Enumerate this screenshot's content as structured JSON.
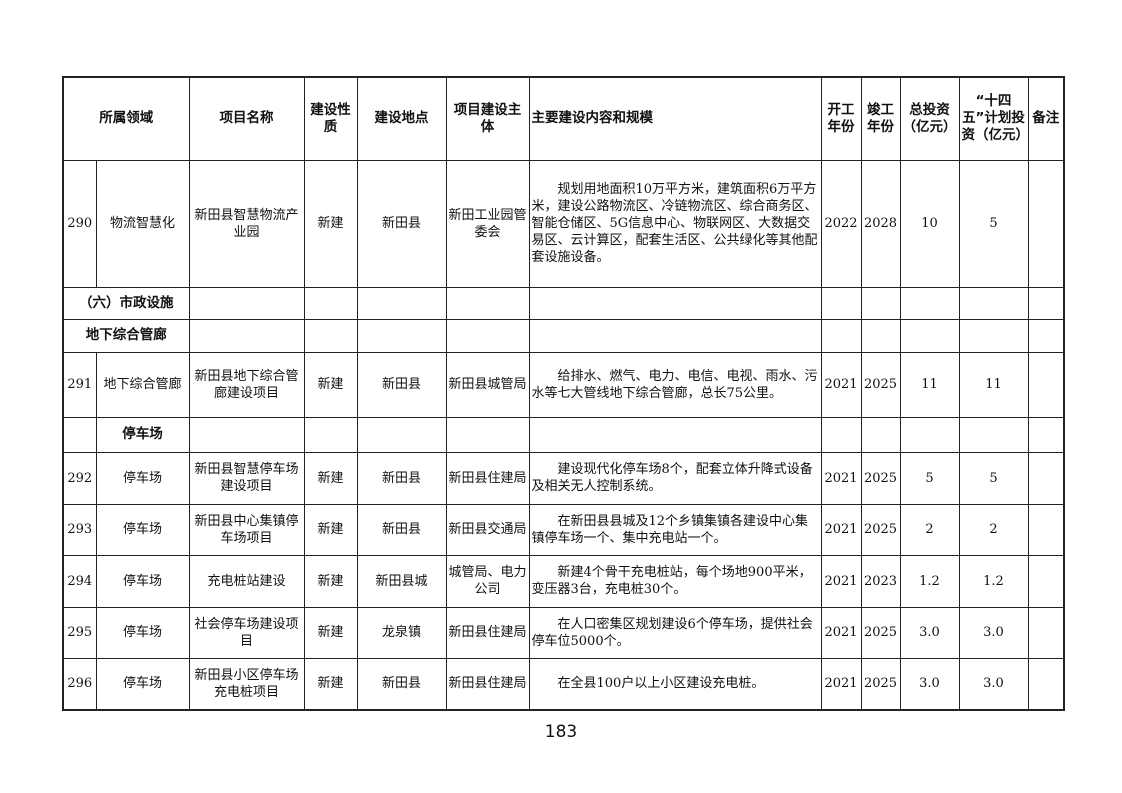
{
  "headers": {
    "domain": "所属领域",
    "name": "项目名称",
    "nature": "建设性质",
    "location": "建设地点",
    "owner": "项目建设主体",
    "content": "主要建设内容和规模",
    "start": "开工年份",
    "end": "竣工年份",
    "total": "总投资（亿元）",
    "plan": "“十四五”计划投资（亿元）",
    "note": "备注"
  },
  "sections": {
    "municipal": "（六）市政设施",
    "pipe": "地下综合管廊",
    "parking": "停车场"
  },
  "rows": [
    {
      "no": "290",
      "domain": "物流智慧化",
      "name": "新田县智慧物流产业园",
      "nature": "新建",
      "location": "新田县",
      "owner": "新田工业园管委会",
      "content": "规划用地面积10万平方米，建筑面积6万平方米，建设公路物流区、冷链物流区、综合商务区、智能仓储区、5G信息中心、物联网区、大数据交易区、云计算区，配套生活区、公共绿化等其他配套设施设备。",
      "start": "2022",
      "end": "2028",
      "total": "10",
      "plan": "5",
      "note": ""
    },
    {
      "no": "291",
      "domain": "地下综合管廊",
      "name": "新田县地下综合管廊建设项目",
      "nature": "新建",
      "location": "新田县",
      "owner": "新田县城管局",
      "content": "给排水、燃气、电力、电信、电视、雨水、污水等七大管线地下综合管廊，总长75公里。",
      "start": "2021",
      "end": "2025",
      "total": "11",
      "plan": "11",
      "note": ""
    },
    {
      "no": "292",
      "domain": "停车场",
      "name": "新田县智慧停车场建设项目",
      "nature": "新建",
      "location": "新田县",
      "owner": "新田县住建局",
      "content": "建设现代化停车场8个，配套立体升降式设备及相关无人控制系统。",
      "start": "2021",
      "end": "2025",
      "total": "5",
      "plan": "5",
      "note": ""
    },
    {
      "no": "293",
      "domain": "停车场",
      "name": "新田县中心集镇停车场项目",
      "nature": "新建",
      "location": "新田县",
      "owner": "新田县交通局",
      "content": "在新田县县城及12个乡镇集镇各建设中心集镇停车场一个、集中充电站一个。",
      "start": "2021",
      "end": "2025",
      "total": "2",
      "plan": "2",
      "note": ""
    },
    {
      "no": "294",
      "domain": "停车场",
      "name": "充电桩站建设",
      "nature": "新建",
      "location": "新田县城",
      "owner": "城管局、电力公司",
      "content": "新建4个骨干充电桩站，每个场地900平米，变压器3台，充电桩30个。",
      "start": "2021",
      "end": "2023",
      "total": "1.2",
      "plan": "1.2",
      "note": ""
    },
    {
      "no": "295",
      "domain": "停车场",
      "name": "社会停车场建设项目",
      "nature": "新建",
      "location": "龙泉镇",
      "owner": "新田县住建局",
      "content": "在人口密集区规划建设6个停车场，提供社会停车位5000个。",
      "start": "2021",
      "end": "2025",
      "total": "3.0",
      "plan": "3.0",
      "note": ""
    },
    {
      "no": "296",
      "domain": "停车场",
      "name": "新田县小区停车场充电桩项目",
      "nature": "新建",
      "location": "新田县",
      "owner": "新田县住建局",
      "content": "在全县100户以上小区建设充电桩。",
      "start": "2021",
      "end": "2025",
      "total": "3.0",
      "plan": "3.0",
      "note": ""
    }
  ],
  "page_number": "183"
}
